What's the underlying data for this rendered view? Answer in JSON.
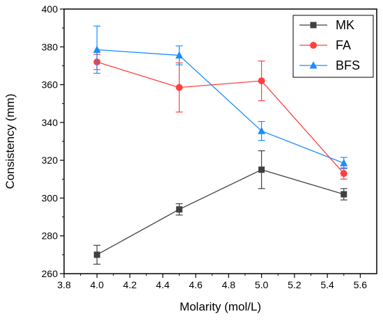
{
  "chart_data": {
    "type": "line",
    "xlabel": "Molarity (mol/L)",
    "ylabel": "Consistency (mm)",
    "xlim": [
      3.8,
      5.7
    ],
    "ylim": [
      260,
      400
    ],
    "xticks": [
      "3.8",
      "4.0",
      "4.2",
      "4.4",
      "4.6",
      "4.8",
      "5.0",
      "5.2",
      "5.4",
      "5.6"
    ],
    "yticks": [
      "260",
      "280",
      "300",
      "320",
      "340",
      "360",
      "380",
      "400"
    ],
    "legend_position": "top-right",
    "grid": false,
    "x": [
      4.0,
      4.5,
      5.0,
      5.5
    ],
    "series": [
      {
        "name": "MK",
        "color": "#404040",
        "marker": "square",
        "values": [
          270,
          294,
          315,
          302
        ],
        "errors": [
          5,
          3,
          10,
          3
        ]
      },
      {
        "name": "FA",
        "color": "#ff4040",
        "marker": "circle",
        "values": [
          372,
          358.5,
          362,
          313
        ],
        "errors": [
          4,
          13,
          10.5,
          3
        ]
      },
      {
        "name": "BFS",
        "color": "#1a8cff",
        "marker": "triangle",
        "values": [
          378.5,
          375.5,
          335.5,
          318.5
        ],
        "errors": [
          12.5,
          5,
          5,
          3
        ]
      }
    ]
  }
}
